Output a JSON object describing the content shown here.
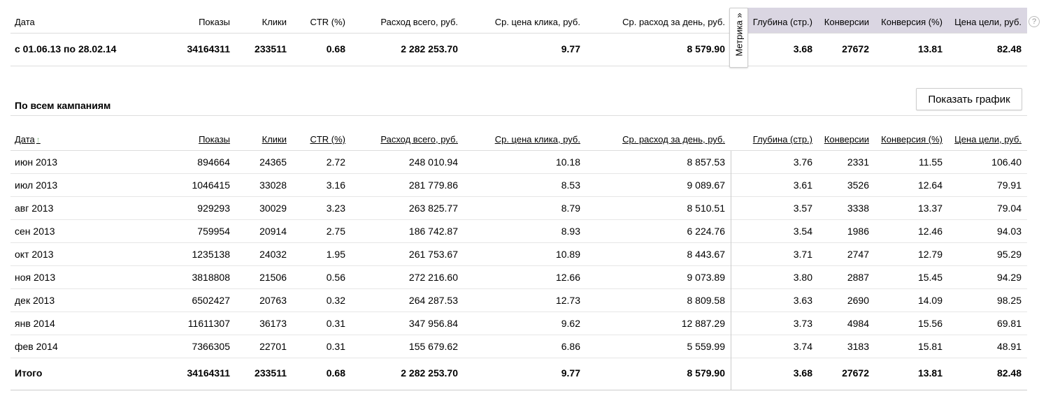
{
  "summary": {
    "headers": [
      "Дата",
      "Показы",
      "Клики",
      "CTR (%)",
      "Расход всего, руб.",
      "Ср. цена клика, руб.",
      "Ср. расход за день, руб.",
      "Глубина (стр.)",
      "Конверсии",
      "Конверсия (%)",
      "Цена цели, руб."
    ],
    "row": [
      "с 01.06.13 по 28.02.14",
      "34164311",
      "233511",
      "0.68",
      "2 282 253.70",
      "9.77",
      "8 579.90",
      "3.68",
      "27672",
      "13.81",
      "82.48"
    ],
    "metrika_tab_label": "Метрика »",
    "help_icon": "?"
  },
  "campaigns": {
    "title": "По всем кампаниям",
    "show_chart_button": "Показать график",
    "sort_arrow": "↑",
    "headers": [
      "Дата",
      "Показы",
      "Клики",
      "CTR (%)",
      "Расход всего, руб.",
      "Ср. цена клика, руб.",
      "Ср. расход за день, руб.",
      "Глубина (стр.)",
      "Конверсии",
      "Конверсия (%)",
      "Цена цели, руб."
    ],
    "rows": [
      [
        "июн 2013",
        "894664",
        "24365",
        "2.72",
        "248 010.94",
        "10.18",
        "8 857.53",
        "3.76",
        "2331",
        "11.55",
        "106.40"
      ],
      [
        "июл 2013",
        "1046415",
        "33028",
        "3.16",
        "281 779.86",
        "8.53",
        "9 089.67",
        "3.61",
        "3526",
        "12.64",
        "79.91"
      ],
      [
        "авг 2013",
        "929293",
        "30029",
        "3.23",
        "263 825.77",
        "8.79",
        "8 510.51",
        "3.57",
        "3338",
        "13.37",
        "79.04"
      ],
      [
        "сен 2013",
        "759954",
        "20914",
        "2.75",
        "186 742.87",
        "8.93",
        "6 224.76",
        "3.54",
        "1986",
        "12.46",
        "94.03"
      ],
      [
        "окт 2013",
        "1235138",
        "24032",
        "1.95",
        "261 753.67",
        "10.89",
        "8 443.67",
        "3.71",
        "2747",
        "12.79",
        "95.29"
      ],
      [
        "ноя 2013",
        "3818808",
        "21506",
        "0.56",
        "272 216.60",
        "12.66",
        "9 073.89",
        "3.80",
        "2887",
        "15.45",
        "94.29"
      ],
      [
        "дек 2013",
        "6502427",
        "20763",
        "0.32",
        "264 287.53",
        "12.73",
        "8 809.58",
        "3.63",
        "2690",
        "14.09",
        "98.25"
      ],
      [
        "янв 2014",
        "11611307",
        "36173",
        "0.31",
        "347 956.84",
        "9.62",
        "12 887.29",
        "3.73",
        "4984",
        "15.56",
        "69.81"
      ],
      [
        "фев 2014",
        "7366305",
        "22701",
        "0.31",
        "155 679.62",
        "6.86",
        "5 559.99",
        "3.74",
        "3183",
        "15.81",
        "48.91"
      ]
    ],
    "total": [
      "Итого",
      "34164311",
      "233511",
      "0.68",
      "2 282 253.70",
      "9.77",
      "8 579.90",
      "3.68",
      "27672",
      "13.81",
      "82.48"
    ]
  }
}
